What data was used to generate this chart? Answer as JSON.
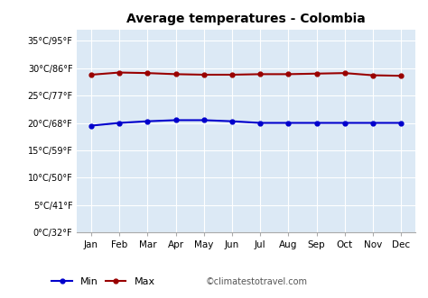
{
  "title": "Average temperatures - Colombia",
  "months": [
    "Jan",
    "Feb",
    "Mar",
    "Apr",
    "May",
    "Jun",
    "Jul",
    "Aug",
    "Sep",
    "Oct",
    "Nov",
    "Dec"
  ],
  "min_temps": [
    19.5,
    20.0,
    20.3,
    20.5,
    20.5,
    20.3,
    20.0,
    20.0,
    20.0,
    20.0,
    20.0,
    20.0
  ],
  "max_temps": [
    28.8,
    29.2,
    29.1,
    28.9,
    28.8,
    28.8,
    28.9,
    28.9,
    29.0,
    29.1,
    28.7,
    28.6
  ],
  "min_color": "#0000cc",
  "max_color": "#990000",
  "bg_color": "#dce9f5",
  "grid_color": "#ffffff",
  "yticks_c": [
    0,
    5,
    10,
    15,
    20,
    25,
    30,
    35
  ],
  "ytick_labels": [
    "0°C/32°F",
    "5°C/41°F",
    "10°C/50°F",
    "15°C/59°F",
    "20°C/68°F",
    "25°C/77°F",
    "30°C/86°F",
    "35°C/95°F"
  ],
  "ylim": [
    0,
    37
  ],
  "watermark": "©climatestotravel.com",
  "legend_min": "Min",
  "legend_max": "Max",
  "fig_width": 4.74,
  "fig_height": 3.31,
  "dpi": 100
}
